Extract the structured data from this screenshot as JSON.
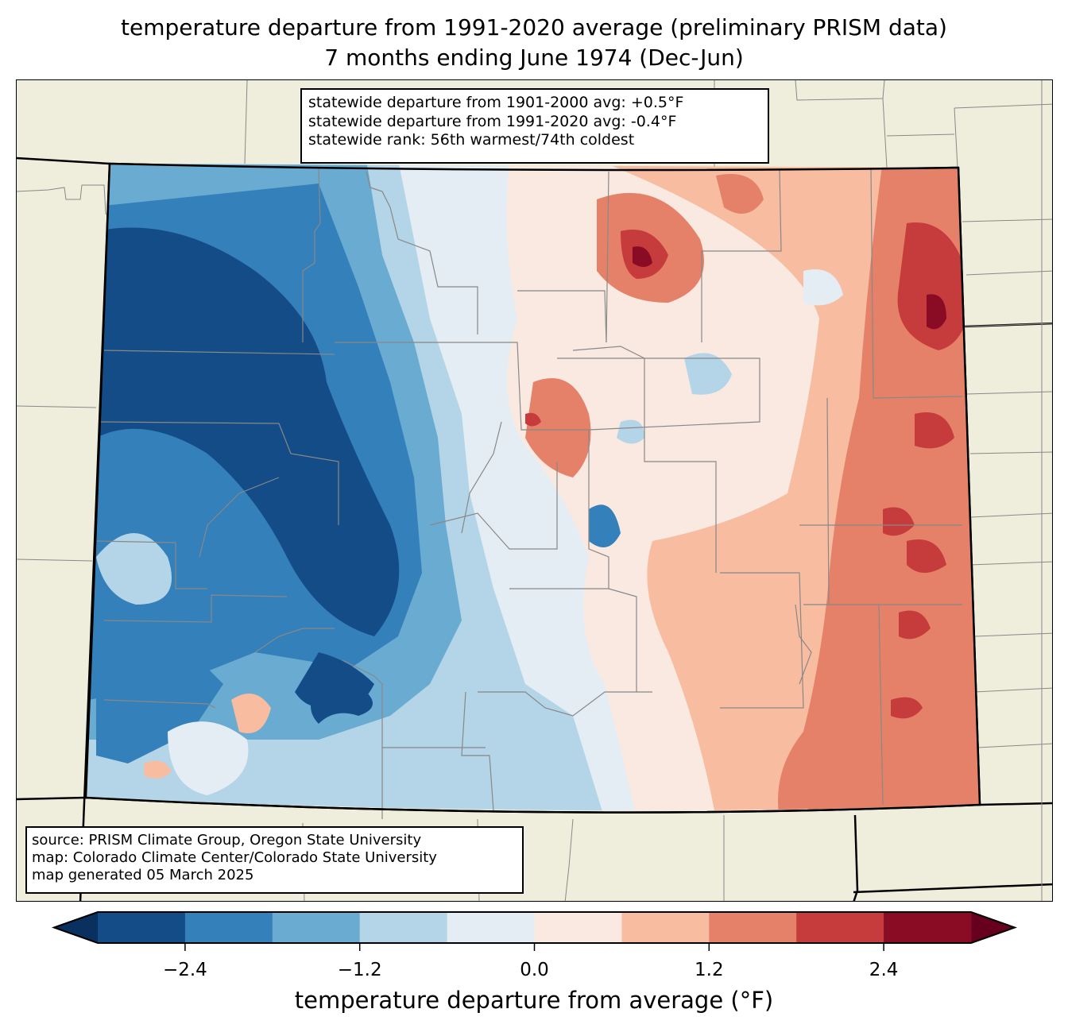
{
  "title": {
    "line1": "temperature departure from 1991-2020 average (preliminary PRISM data)",
    "line2": "7 months ending June 1974 (Dec-Jun)"
  },
  "stats_box": {
    "line1": "statewide departure from 1901-2000 avg: +0.5°F",
    "line2": "statewide departure from 1991-2020 avg: -0.4°F",
    "line3": "statewide rank: 56th warmest/74th coldest"
  },
  "source_box": {
    "line1": "source: PRISM Climate Group, Oregon State University",
    "line2": "map: Colorado Climate Center/Colorado State University",
    "line3": "map generated 05 March 2025"
  },
  "colorbar": {
    "label": "temperature departure from average (°F)",
    "levels": [
      -3.0,
      -2.4,
      -1.8,
      -1.2,
      -0.6,
      0.0,
      0.6,
      1.2,
      1.8,
      2.4,
      3.0
    ],
    "colors": [
      "#144c87",
      "#3480ba",
      "#6aabd1",
      "#b3d5e7",
      "#e4edf4",
      "#f9e9e0",
      "#f8bca1",
      "#e58069",
      "#c63c3c",
      "#890c24"
    ],
    "under_color": "#0a3060",
    "over_color": "#67001f",
    "ticks": [
      "−2.4",
      "−1.2",
      "0.0",
      "1.2",
      "2.4"
    ],
    "tick_values": [
      -2.4,
      -1.2,
      0.0,
      1.2,
      2.4
    ],
    "extend": "both"
  },
  "map": {
    "background_color": "#efeedc",
    "region": "Colorado",
    "pattern": "colder west (mountains), warmer east (plains)"
  }
}
